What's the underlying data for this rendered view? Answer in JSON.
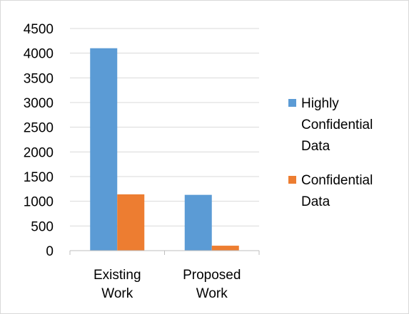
{
  "chart_data": {
    "type": "bar",
    "categories": [
      "Existing Work",
      "Proposed Work"
    ],
    "category_lines": [
      [
        "Existing",
        "Work"
      ],
      [
        "Proposed",
        "Work"
      ]
    ],
    "series": [
      {
        "name": "Highly Confidential Data",
        "name_lines": [
          "Highly",
          "Confidential",
          "Data"
        ],
        "color": "#5b9bd5",
        "values": [
          4100,
          1130
        ]
      },
      {
        "name": "Confidential Data",
        "name_lines": [
          "Confidential",
          "Data"
        ],
        "color": "#ed7d31",
        "values": [
          1140,
          100
        ]
      }
    ],
    "ylim": [
      0,
      4500
    ],
    "yticks": [
      "0",
      "500",
      "1000",
      "1500",
      "2000",
      "2500",
      "3000",
      "3500",
      "4000",
      "4500"
    ],
    "grid": true,
    "legend_position": "right",
    "title": "",
    "xlabel": "",
    "ylabel": ""
  }
}
